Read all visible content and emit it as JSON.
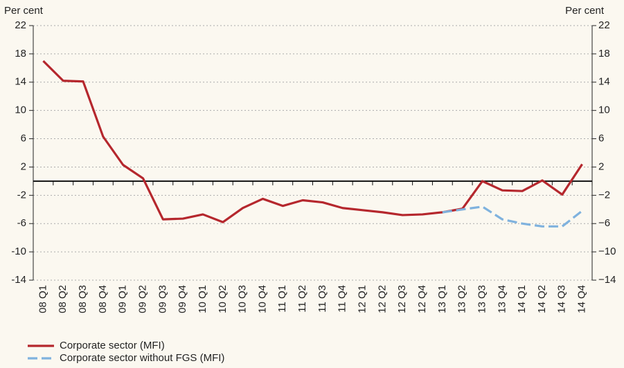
{
  "chart_data": {
    "type": "line",
    "y_label": "Per cent",
    "y2_label": "Per cent",
    "categories": [
      "08 Q1",
      "08 Q2",
      "08 Q3",
      "08 Q4",
      "09 Q1",
      "09 Q2",
      "09 Q3",
      "09 Q4",
      "10 Q1",
      "10 Q2",
      "10 Q3",
      "10 Q4",
      "11 Q1",
      "11 Q2",
      "11 Q3",
      "11 Q4",
      "12 Q1",
      "12 Q2",
      "12 Q3",
      "12 Q4",
      "13 Q1",
      "13 Q2",
      "13 Q3",
      "13 Q4",
      "14 Q1",
      "14 Q2",
      "14 Q3",
      "14 Q4"
    ],
    "series": [
      {
        "name": "Corporate sector (MFI)",
        "color": "#b5272d",
        "dash": false,
        "values": [
          17,
          14.2,
          14.1,
          6.3,
          2.3,
          0.4,
          -5.4,
          -5.3,
          -4.7,
          -5.8,
          -3.8,
          -2.5,
          -3.5,
          -2.7,
          -3.0,
          -3.8,
          -4.1,
          -4.4,
          -4.8,
          -4.7,
          -4.4,
          -3.9,
          0,
          -1.3,
          -1.4,
          0.1,
          -1.9,
          2.4
        ]
      },
      {
        "name": "Corporate sector without FGS (MFI)",
        "color": "#7fb2de",
        "dash": true,
        "values": [
          null,
          null,
          null,
          null,
          null,
          null,
          null,
          null,
          null,
          null,
          null,
          null,
          null,
          null,
          null,
          null,
          null,
          null,
          null,
          null,
          -4.4,
          -4.0,
          -3.6,
          -5.4,
          -6.0,
          -6.4,
          -6.4,
          -4.2
        ]
      }
    ],
    "ylim": [
      -14,
      22
    ],
    "yticks": [
      -14,
      -10,
      -6,
      -2,
      2,
      6,
      10,
      14,
      18,
      22
    ],
    "y2lim": [
      -14,
      22
    ],
    "y2ticks": [
      {
        "value": -14,
        "label": "−14"
      },
      {
        "value": -10,
        "label": "−10"
      },
      {
        "value": -6,
        "label": "−6"
      },
      {
        "value": -2,
        "label": "−2"
      },
      2,
      6,
      10,
      14,
      18,
      22
    ],
    "grid": true
  }
}
